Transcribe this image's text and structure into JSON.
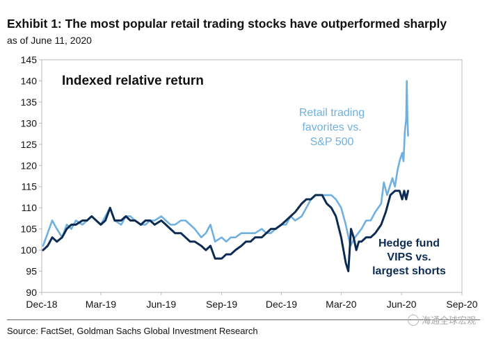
{
  "header": {
    "title": "Exhibit 1: The most popular retail trading stocks have outperformed sharply",
    "subtitle": "as of June 11, 2020"
  },
  "chart_data": {
    "type": "line",
    "title": "Indexed relative return",
    "xlabel": "",
    "ylabel": "",
    "ylim": [
      90,
      145
    ],
    "yticks": [
      90,
      95,
      100,
      105,
      110,
      115,
      120,
      125,
      130,
      135,
      140,
      145
    ],
    "xlim": [
      "2018-12-01",
      "2020-09-01"
    ],
    "xticks": [
      "Dec-18",
      "Mar-19",
      "Jun-19",
      "Sep-19",
      "Dec-19",
      "Mar-20",
      "Jun-20",
      "Sep-20"
    ],
    "grid": false,
    "series": [
      {
        "name": "Retail trading favorites vs. S&P 500",
        "label_lines": [
          "Retail trading",
          "favorites vs.",
          "S&P 500"
        ],
        "color": "#6fb0e0",
        "dates": [
          "2018-12-03",
          "2018-12-10",
          "2018-12-17",
          "2018-12-24",
          "2019-01-01",
          "2019-01-08",
          "2019-01-15",
          "2019-01-22",
          "2019-02-01",
          "2019-02-08",
          "2019-02-15",
          "2019-02-22",
          "2019-03-01",
          "2019-03-08",
          "2019-03-15",
          "2019-03-22",
          "2019-04-01",
          "2019-04-08",
          "2019-04-15",
          "2019-04-22",
          "2019-05-01",
          "2019-05-08",
          "2019-05-15",
          "2019-05-22",
          "2019-06-01",
          "2019-06-08",
          "2019-06-15",
          "2019-06-22",
          "2019-07-01",
          "2019-07-08",
          "2019-07-15",
          "2019-07-22",
          "2019-08-01",
          "2019-08-08",
          "2019-08-15",
          "2019-08-22",
          "2019-09-01",
          "2019-09-08",
          "2019-09-15",
          "2019-09-22",
          "2019-10-01",
          "2019-10-08",
          "2019-10-15",
          "2019-10-22",
          "2019-11-01",
          "2019-11-08",
          "2019-11-15",
          "2019-11-22",
          "2019-12-01",
          "2019-12-08",
          "2019-12-15",
          "2019-12-22",
          "2020-01-01",
          "2020-01-08",
          "2020-01-15",
          "2020-01-22",
          "2020-02-01",
          "2020-02-08",
          "2020-02-15",
          "2020-02-22",
          "2020-03-01",
          "2020-03-08",
          "2020-03-15",
          "2020-03-22",
          "2020-04-01",
          "2020-04-08",
          "2020-04-15",
          "2020-04-22",
          "2020-05-01",
          "2020-05-05",
          "2020-05-10",
          "2020-05-14",
          "2020-05-18",
          "2020-05-22",
          "2020-05-26",
          "2020-05-29",
          "2020-06-02",
          "2020-06-04",
          "2020-06-06",
          "2020-06-08",
          "2020-06-09",
          "2020-06-10",
          "2020-06-11"
        ],
        "values": [
          101,
          104,
          107,
          105,
          103,
          106,
          105,
          107,
          106,
          107,
          108,
          107,
          106,
          108,
          110,
          107,
          106,
          108,
          108,
          107,
          106,
          106,
          107,
          107,
          108,
          107,
          106,
          106,
          107,
          107,
          106,
          105,
          103,
          104,
          106,
          102,
          103,
          102,
          103,
          103,
          104,
          104,
          104,
          104,
          105,
          104,
          104,
          105,
          106,
          106,
          108,
          107,
          108,
          110,
          112,
          113,
          113,
          113,
          113,
          112,
          110,
          106,
          101,
          103,
          105,
          107,
          107,
          109,
          111,
          116,
          113,
          115,
          117,
          115,
          119,
          121,
          123,
          121,
          128,
          131,
          140,
          131,
          127
        ]
      },
      {
        "name": "Hedge fund VIPS vs. largest shorts",
        "label_lines": [
          "Hedge fund",
          "VIPS vs.",
          "largest shorts"
        ],
        "color": "#0c2b52",
        "dates": [
          "2018-12-03",
          "2018-12-10",
          "2018-12-17",
          "2018-12-24",
          "2019-01-01",
          "2019-01-08",
          "2019-01-15",
          "2019-01-22",
          "2019-02-01",
          "2019-02-08",
          "2019-02-15",
          "2019-02-22",
          "2019-03-01",
          "2019-03-08",
          "2019-03-15",
          "2019-03-22",
          "2019-04-01",
          "2019-04-08",
          "2019-04-15",
          "2019-04-22",
          "2019-05-01",
          "2019-05-08",
          "2019-05-15",
          "2019-05-22",
          "2019-06-01",
          "2019-06-08",
          "2019-06-15",
          "2019-06-22",
          "2019-07-01",
          "2019-07-08",
          "2019-07-15",
          "2019-07-22",
          "2019-08-01",
          "2019-08-08",
          "2019-08-15",
          "2019-08-22",
          "2019-09-01",
          "2019-09-08",
          "2019-09-15",
          "2019-09-22",
          "2019-10-01",
          "2019-10-08",
          "2019-10-15",
          "2019-10-22",
          "2019-11-01",
          "2019-11-08",
          "2019-11-15",
          "2019-11-22",
          "2019-12-01",
          "2019-12-08",
          "2019-12-15",
          "2019-12-22",
          "2020-01-01",
          "2020-01-08",
          "2020-01-15",
          "2020-01-22",
          "2020-02-01",
          "2020-02-08",
          "2020-02-15",
          "2020-02-22",
          "2020-03-01",
          "2020-03-08",
          "2020-03-12",
          "2020-03-16",
          "2020-03-20",
          "2020-03-24",
          "2020-03-28",
          "2020-04-01",
          "2020-04-08",
          "2020-04-15",
          "2020-04-22",
          "2020-05-01",
          "2020-05-08",
          "2020-05-15",
          "2020-05-22",
          "2020-05-29",
          "2020-06-02",
          "2020-06-05",
          "2020-06-08",
          "2020-06-11"
        ],
        "values": [
          100,
          101,
          103,
          102,
          103,
          105,
          106,
          106,
          107,
          107,
          108,
          107,
          106,
          107,
          110,
          107,
          107,
          108,
          107,
          107,
          106,
          107,
          107,
          106,
          107,
          106,
          105,
          104,
          104,
          103,
          102,
          102,
          101,
          100,
          101,
          98,
          98,
          99,
          99,
          100,
          101,
          102,
          102,
          103,
          103,
          104,
          105,
          105,
          106,
          107,
          108,
          109,
          111,
          112,
          112,
          113,
          113,
          111,
          110,
          108,
          103,
          97,
          95,
          105,
          103,
          100,
          102,
          102,
          103,
          103,
          104,
          106,
          109,
          113,
          114,
          114,
          112,
          114,
          112,
          114
        ]
      }
    ]
  },
  "footer": {
    "source": "Source: FactSet, Goldman Sachs Global Investment Research"
  },
  "watermark": {
    "text": "海通全球宏观"
  }
}
